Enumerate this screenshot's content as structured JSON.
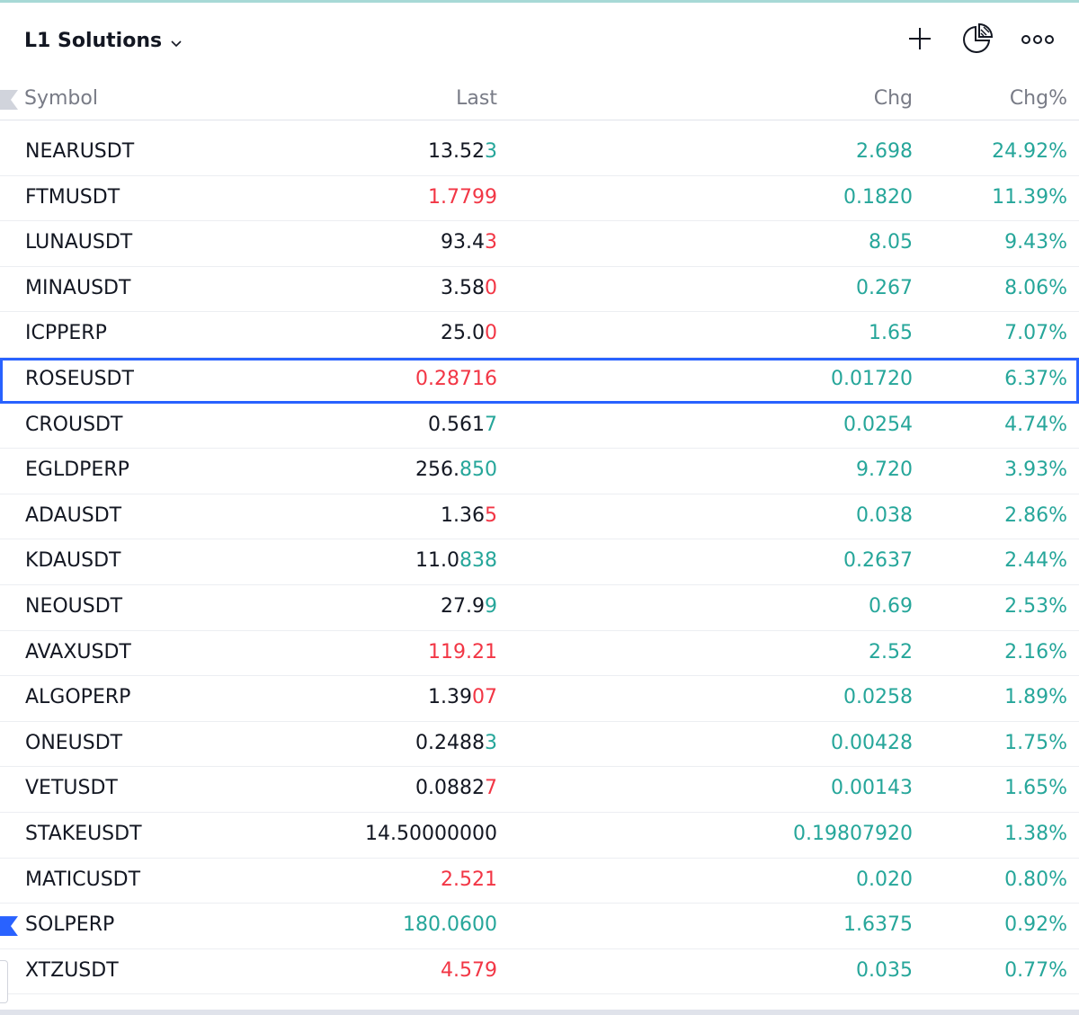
{
  "header": {
    "list_title": "L1 Solutions",
    "icons": [
      "plus-icon",
      "pie-chart-icon",
      "more-icon"
    ]
  },
  "columns": {
    "symbol": "Symbol",
    "last": "Last",
    "chg": "Chg",
    "chg_pct": "Chg%"
  },
  "colors": {
    "up": "#26a69a",
    "down": "#f23645",
    "text": "#131722",
    "muted": "#787b86",
    "selection": "#2962ff",
    "flag": "#2962ff"
  },
  "rows": [
    {
      "symbol": "NEARUSDT",
      "last_base": "13.52",
      "last_tick": "3",
      "tick_dir": "up",
      "chg": "2.698",
      "chg_pct": "24.92%"
    },
    {
      "symbol": "FTMUSDT",
      "last_base": "1.7799",
      "last_tick": "",
      "tick_dir": "down",
      "full_dir": "down",
      "chg": "0.1820",
      "chg_pct": "11.39%"
    },
    {
      "symbol": "LUNAUSDT",
      "last_base": "93.4",
      "last_tick": "3",
      "tick_dir": "down",
      "chg": "8.05",
      "chg_pct": "9.43%"
    },
    {
      "symbol": "MINAUSDT",
      "last_base": "3.58",
      "last_tick": "0",
      "tick_dir": "down",
      "chg": "0.267",
      "chg_pct": "8.06%"
    },
    {
      "symbol": "ICPPERP",
      "last_base": "25.0",
      "last_tick": "0",
      "tick_dir": "down",
      "chg": "1.65",
      "chg_pct": "7.07%"
    },
    {
      "symbol": "ROSEUSDT",
      "last_base": "0.28716",
      "last_tick": "",
      "tick_dir": "down",
      "full_dir": "down",
      "chg": "0.01720",
      "chg_pct": "6.37%",
      "selected": true
    },
    {
      "symbol": "CROUSDT",
      "last_base": "0.561",
      "last_tick": "7",
      "tick_dir": "up",
      "chg": "0.0254",
      "chg_pct": "4.74%"
    },
    {
      "symbol": "EGLDPERP",
      "last_base": "256.",
      "last_tick": "850",
      "tick_dir": "up",
      "chg": "9.720",
      "chg_pct": "3.93%"
    },
    {
      "symbol": "ADAUSDT",
      "last_base": "1.36",
      "last_tick": "5",
      "tick_dir": "down",
      "chg": "0.038",
      "chg_pct": "2.86%"
    },
    {
      "symbol": "KDAUSDT",
      "last_base": "11.0",
      "last_tick": "838",
      "tick_dir": "up",
      "chg": "0.2637",
      "chg_pct": "2.44%"
    },
    {
      "symbol": "NEOUSDT",
      "last_base": "27.9",
      "last_tick": "9",
      "tick_dir": "up",
      "chg": "0.69",
      "chg_pct": "2.53%"
    },
    {
      "symbol": "AVAXUSDT",
      "last_base": "119.21",
      "last_tick": "",
      "tick_dir": "down",
      "full_dir": "down",
      "chg": "2.52",
      "chg_pct": "2.16%"
    },
    {
      "symbol": "ALGOPERP",
      "last_base": "1.39",
      "last_tick": "07",
      "tick_dir": "down",
      "chg": "0.0258",
      "chg_pct": "1.89%"
    },
    {
      "symbol": "ONEUSDT",
      "last_base": "0.2488",
      "last_tick": "3",
      "tick_dir": "up",
      "chg": "0.00428",
      "chg_pct": "1.75%"
    },
    {
      "symbol": "VETUSDT",
      "last_base": "0.0882",
      "last_tick": "7",
      "tick_dir": "down",
      "chg": "0.00143",
      "chg_pct": "1.65%"
    },
    {
      "symbol": "STAKEUSDT",
      "last_base": "14.50000000",
      "last_tick": "",
      "tick_dir": "neutral",
      "chg": "0.19807920",
      "chg_pct": "1.38%"
    },
    {
      "symbol": "MATICUSDT",
      "last_base": "2.521",
      "last_tick": "",
      "tick_dir": "down",
      "full_dir": "down",
      "chg": "0.020",
      "chg_pct": "0.80%"
    },
    {
      "symbol": "SOLPERP",
      "last_base": "180.0600",
      "last_tick": "",
      "tick_dir": "up",
      "full_dir": "up",
      "chg": "1.6375",
      "chg_pct": "0.92%",
      "flagged": true
    },
    {
      "symbol": "XTZUSDT",
      "last_base": "4.579",
      "last_tick": "",
      "tick_dir": "down",
      "full_dir": "down",
      "chg": "0.035",
      "chg_pct": "0.77%"
    }
  ]
}
